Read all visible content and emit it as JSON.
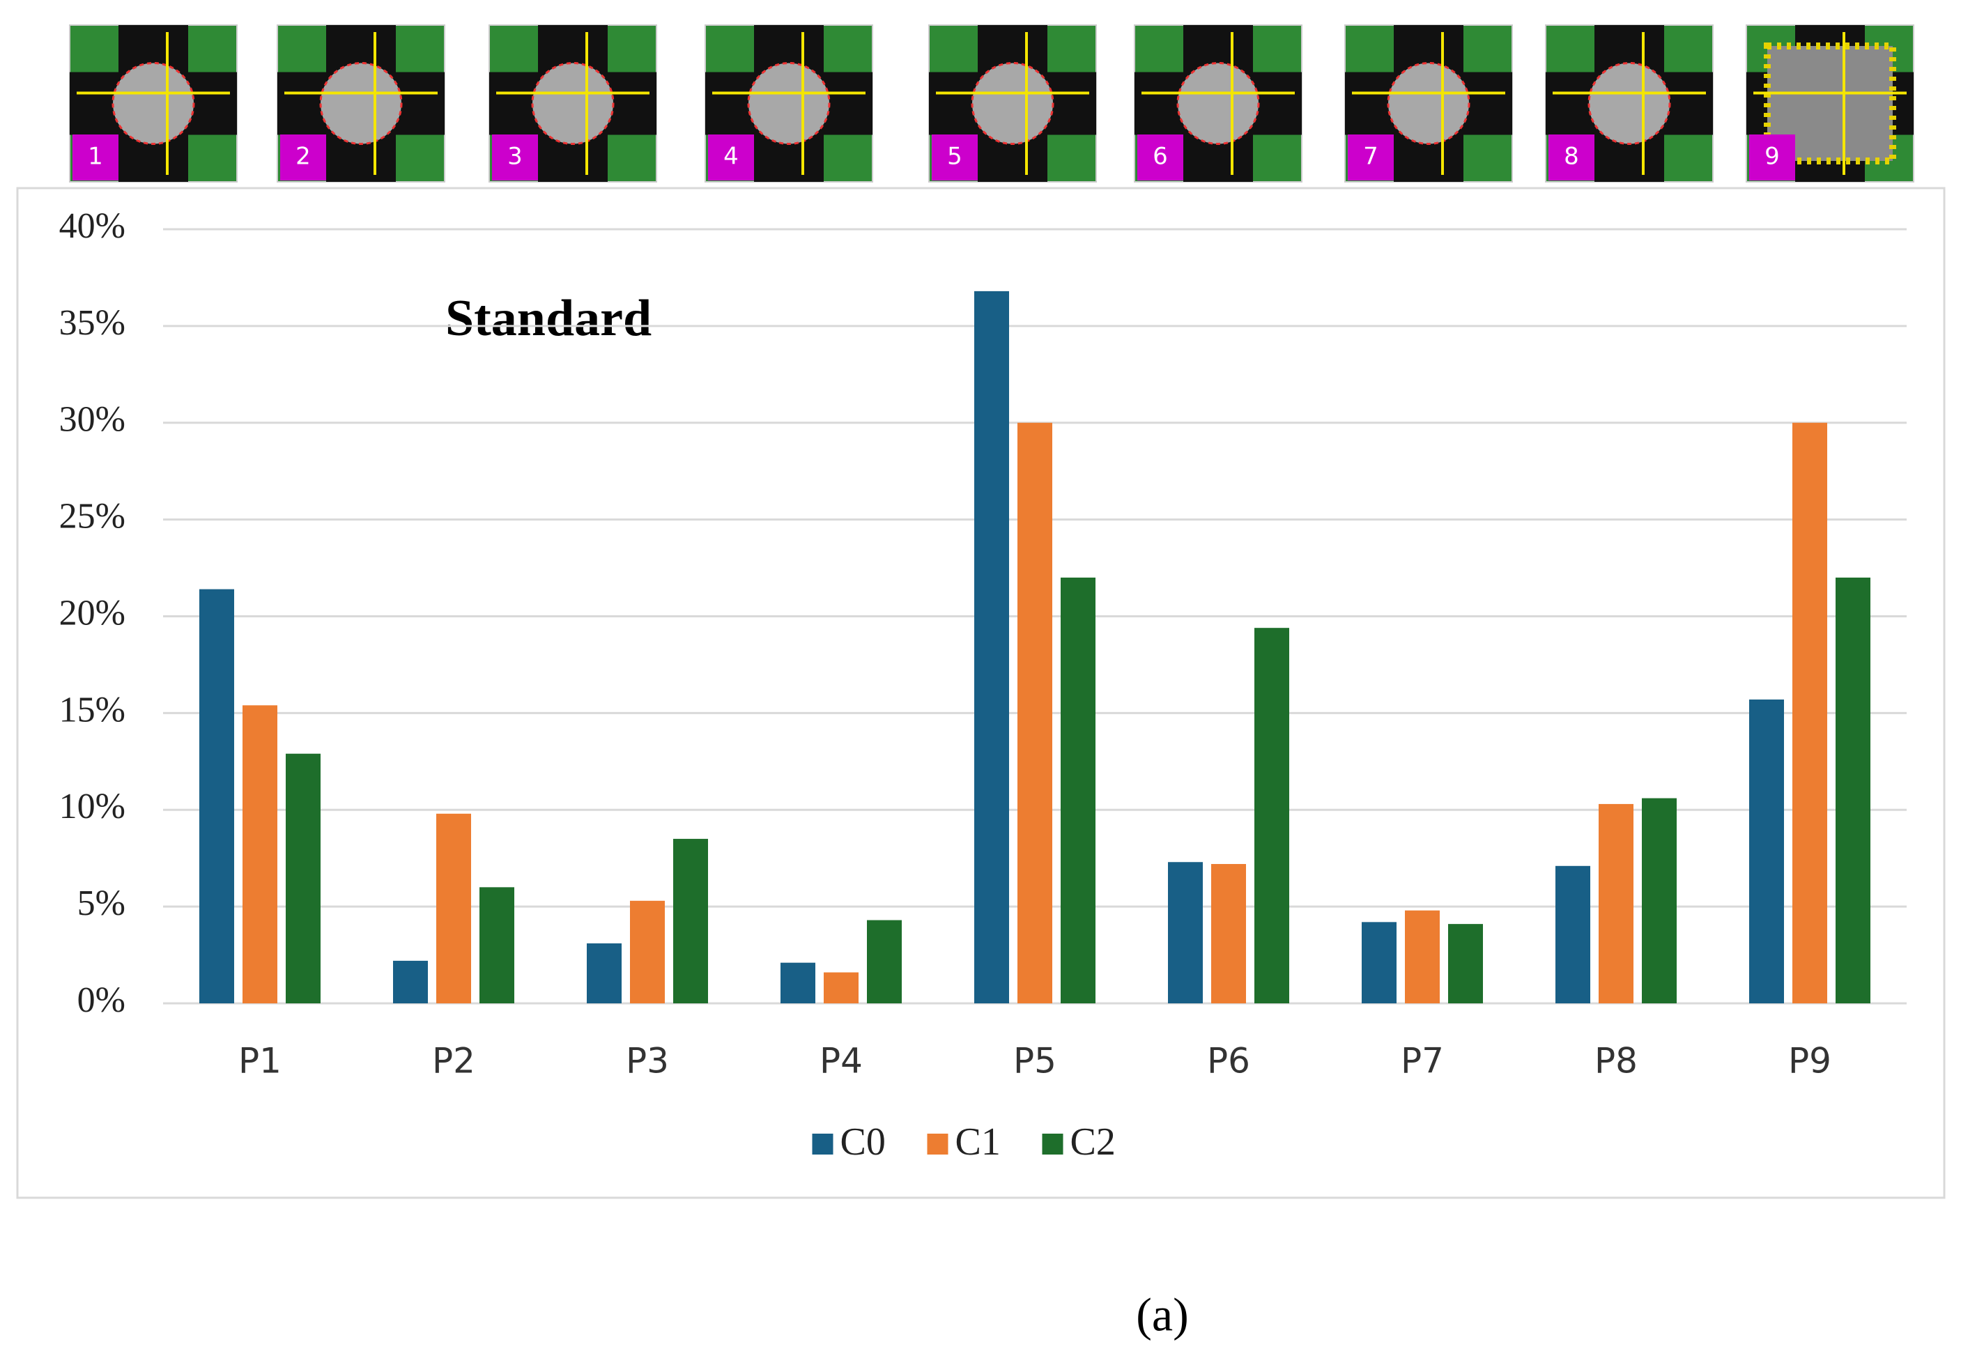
{
  "icons": {
    "labels": [
      "1",
      "2",
      "3",
      "4",
      "5",
      "6",
      "7",
      "8",
      "9"
    ]
  },
  "chart_data": {
    "type": "bar",
    "annotation": "Standard",
    "caption": "(a)",
    "categories": [
      "P1",
      "P2",
      "P3",
      "P4",
      "P5",
      "P6",
      "P7",
      "P8",
      "P9"
    ],
    "series": [
      {
        "name": "C0",
        "color": "#185f86",
        "values": [
          21.4,
          2.2,
          3.1,
          2.1,
          36.8,
          7.3,
          4.2,
          7.1,
          15.7
        ]
      },
      {
        "name": "C1",
        "color": "#ed7d31",
        "values": [
          15.4,
          9.8,
          5.3,
          1.6,
          30.0,
          7.2,
          4.8,
          10.3,
          30.0
        ]
      },
      {
        "name": "C2",
        "color": "#1e6e2b",
        "values": [
          12.9,
          6.0,
          8.5,
          4.3,
          22.0,
          19.4,
          4.1,
          10.6,
          22.0
        ]
      }
    ],
    "ylim": [
      0,
      40
    ],
    "yticks": [
      {
        "value": 0,
        "label": "0%"
      },
      {
        "value": 5,
        "label": "5%"
      },
      {
        "value": 10,
        "label": "10%"
      },
      {
        "value": 15,
        "label": "15%"
      },
      {
        "value": 20,
        "label": "20%"
      },
      {
        "value": 25,
        "label": "25%"
      },
      {
        "value": 30,
        "label": "30%"
      },
      {
        "value": 35,
        "label": "35%"
      },
      {
        "value": 40,
        "label": "40%"
      }
    ],
    "grid": true,
    "legend": "bottom"
  }
}
